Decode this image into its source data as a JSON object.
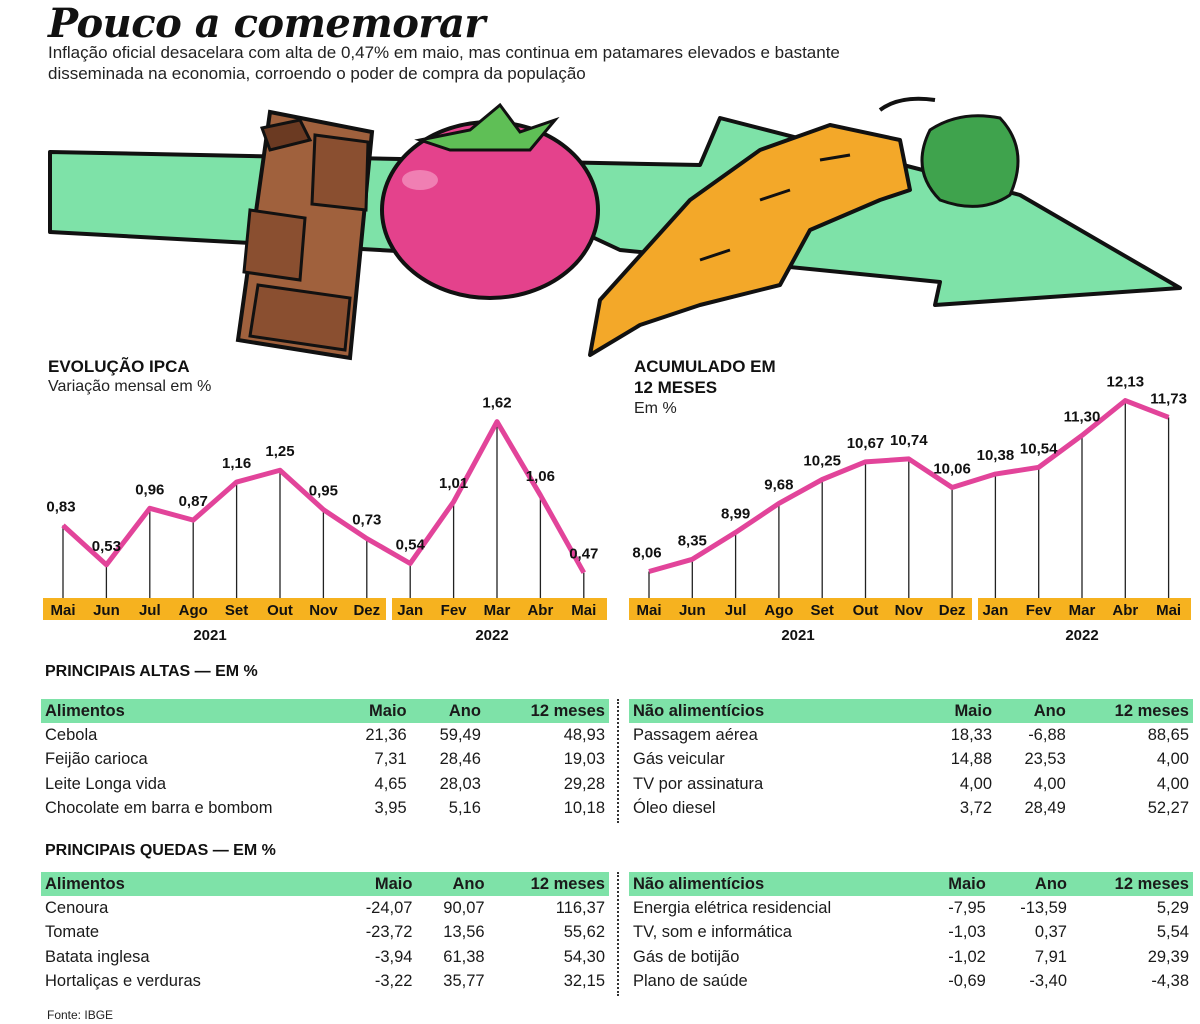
{
  "header": {
    "title": "Pouco a comemorar",
    "subtitle": "Inflação oficial desacelara com alta de 0,47% em maio, mas continua em patamares elevados e bastante disseminada na economia, corroendo o poder de compra da população"
  },
  "colors": {
    "line": "#e2449a",
    "axis_band": "#f6b21f",
    "table_header": "#7ee2a8",
    "arrow": "#7ee2a8",
    "tomato": "#e4428c",
    "carrot": "#f3a829",
    "chocolate": "#a0613d"
  },
  "illustration": {
    "items": [
      "chocolate-bar",
      "tomato",
      "carrot",
      "green-arrow"
    ]
  },
  "chart_data": [
    {
      "type": "line",
      "title": "EVOLUÇÃO IPCA",
      "subtitle": "Variação mensal em %",
      "categories": [
        "Mai",
        "Jun",
        "Jul",
        "Ago",
        "Set",
        "Out",
        "Nov",
        "Dez",
        "Jan",
        "Fev",
        "Mar",
        "Abr",
        "Mai"
      ],
      "years": [
        "2021",
        "2022"
      ],
      "values": [
        0.83,
        0.53,
        0.96,
        0.87,
        1.16,
        1.25,
        0.95,
        0.73,
        0.54,
        1.01,
        1.62,
        1.06,
        0.47
      ],
      "labels": [
        "0,83",
        "0,53",
        "0,96",
        "0,87",
        "1,16",
        "1,25",
        "0,95",
        "0,73",
        "0,54",
        "1,01",
        "1,62",
        "1,06",
        "0,47"
      ],
      "ylim": [
        0.3,
        1.8
      ]
    },
    {
      "type": "line",
      "title": "ACUMULADO EM 12 MESES",
      "subtitle": "Em %",
      "categories": [
        "Mai",
        "Jun",
        "Jul",
        "Ago",
        "Set",
        "Out",
        "Nov",
        "Dez",
        "Jan",
        "Fev",
        "Mar",
        "Abr",
        "Mai"
      ],
      "years": [
        "2021",
        "2022"
      ],
      "values": [
        8.06,
        8.35,
        8.99,
        9.68,
        10.25,
        10.67,
        10.74,
        10.06,
        10.38,
        10.54,
        11.3,
        12.13,
        11.73
      ],
      "labels": [
        "8,06",
        "8,35",
        "8,99",
        "9,68",
        "10,25",
        "10,67",
        "10,74",
        "10,06",
        "10,38",
        "10,54",
        "11,30",
        "12,13",
        "11,73"
      ],
      "ylim": [
        7.5,
        12.5
      ]
    }
  ],
  "sections": {
    "altas_title": "PRINCIPAIS ALTAS — EM %",
    "quedas_title": "PRINCIPAIS QUEDAS — EM %"
  },
  "tables": {
    "altas_alimentos": {
      "headers": [
        "Alimentos",
        "Maio",
        "Ano",
        "12 meses"
      ],
      "rows": [
        [
          "Cebola",
          "21,36",
          "59,49",
          "48,93"
        ],
        [
          "Feijão carioca",
          "7,31",
          "28,46",
          "19,03"
        ],
        [
          "Leite Longa vida",
          "4,65",
          "28,03",
          "29,28"
        ],
        [
          "Chocolate em barra e bombom",
          "3,95",
          "5,16",
          "10,18"
        ]
      ]
    },
    "altas_nao_alimenticios": {
      "headers": [
        "Não alimentícios",
        "Maio",
        "Ano",
        "12 meses"
      ],
      "rows": [
        [
          "Passagem aérea",
          "18,33",
          "-6,88",
          "88,65"
        ],
        [
          "Gás veicular",
          "14,88",
          "23,53",
          "4,00"
        ],
        [
          "TV por assinatura",
          "4,00",
          "4,00",
          "4,00"
        ],
        [
          "Óleo diesel",
          "3,72",
          "28,49",
          "52,27"
        ]
      ]
    },
    "quedas_alimentos": {
      "headers": [
        "Alimentos",
        "Maio",
        "Ano",
        "12 meses"
      ],
      "rows": [
        [
          "Cenoura",
          "-24,07",
          "90,07",
          "116,37"
        ],
        [
          "Tomate",
          "-23,72",
          "13,56",
          "55,62"
        ],
        [
          "Batata inglesa",
          "-3,94",
          "61,38",
          "54,30"
        ],
        [
          "Hortaliças e verduras",
          "-3,22",
          "35,77",
          "32,15"
        ]
      ]
    },
    "quedas_nao_alimenticios": {
      "headers": [
        "Não alimentícios",
        "Maio",
        "Ano",
        "12 meses"
      ],
      "rows": [
        [
          "Energia elétrica residencial",
          "-7,95",
          "-13,59",
          "5,29"
        ],
        [
          "TV, som e informática",
          "-1,03",
          "0,37",
          "5,54"
        ],
        [
          "Gás de botijão",
          "-1,02",
          "7,91",
          "29,39"
        ],
        [
          "Plano de saúde",
          "-0,69",
          "-3,40",
          "-4,38"
        ]
      ]
    }
  },
  "footer": {
    "source": "Fonte: IBGE"
  }
}
